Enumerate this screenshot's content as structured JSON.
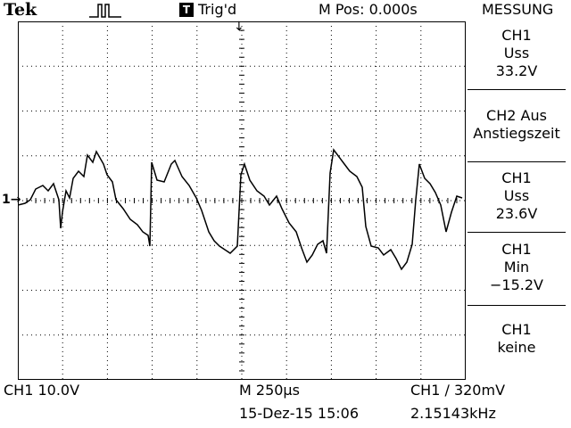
{
  "header": {
    "brand": "Tek",
    "trigger_status": "Trig'd",
    "trigger_icon_label": "T",
    "m_pos": "M Pos: 0.000s",
    "measure_title": "MESSUNG"
  },
  "measurements": [
    {
      "line1": "CH1",
      "line2": "Uss",
      "line3": "33.2V"
    },
    {
      "line1": "CH2 Aus",
      "line2": "Anstiegszeit",
      "line3": ""
    },
    {
      "line1": "CH1",
      "line2": "Uss",
      "line3": "23.6V"
    },
    {
      "line1": "CH1",
      "line2": "Min",
      "line3": "−15.2V"
    },
    {
      "line1": "CH1",
      "line2": "keine",
      "line3": ""
    }
  ],
  "footer": {
    "ch1_scale": "CH1  10.0V",
    "timebase": "M 250µs",
    "trigger_level": "CH1 ∕ 320mV",
    "datetime": "15-Dez-15 15:06",
    "frequency": "2.15143kHz"
  },
  "markers": {
    "channel_marker": "1→",
    "trigger_pos": "↓"
  },
  "colors": {
    "trace": "#000000",
    "grid": "#000000",
    "background": "#ffffff"
  },
  "trace": {
    "description_type": "line",
    "divisions_x": 10,
    "divisions_y": 8
  }
}
